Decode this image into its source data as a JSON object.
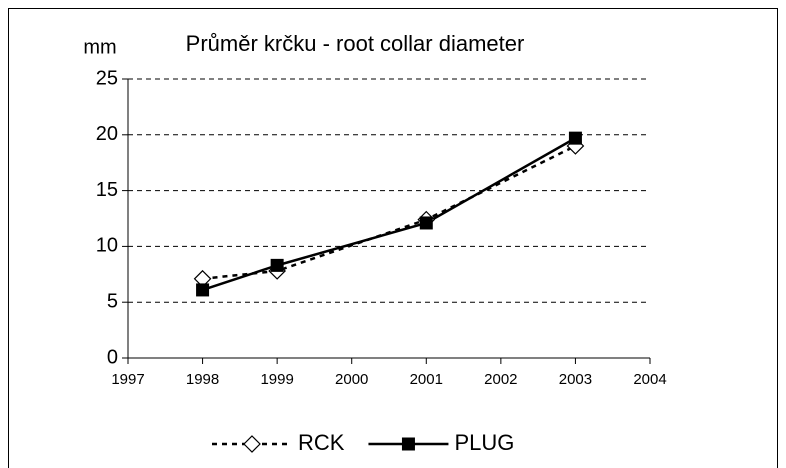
{
  "chart_data": {
    "type": "line",
    "title": "Průměr krčku - root collar diameter",
    "y_label": "mm",
    "x": [
      1998,
      1999,
      2001,
      2003
    ],
    "series": [
      {
        "name": "RCK",
        "color": "#000000",
        "dash": true,
        "marker": "diamond-open",
        "values": [
          7.1,
          7.8,
          12.4,
          19.0
        ]
      },
      {
        "name": "PLUG",
        "color": "#000000",
        "dash": false,
        "marker": "square-filled",
        "values": [
          6.1,
          8.3,
          12.1,
          19.7
        ]
      }
    ],
    "xlim": [
      1997,
      2004
    ],
    "xticks": [
      1997,
      1998,
      1999,
      2000,
      2001,
      2002,
      2003,
      2004
    ],
    "ylim": [
      0,
      25
    ],
    "yticks": [
      0,
      5,
      10,
      15,
      20,
      25
    ],
    "grid": true,
    "legend": "bottom"
  }
}
